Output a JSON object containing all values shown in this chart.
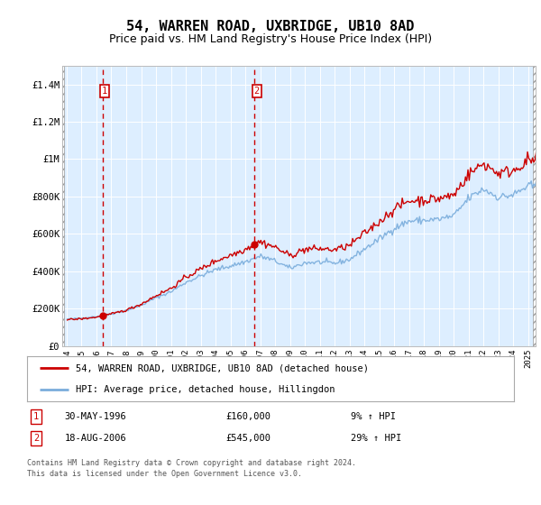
{
  "title": "54, WARREN ROAD, UXBRIDGE, UB10 8AD",
  "subtitle": "Price paid vs. HM Land Registry's House Price Index (HPI)",
  "title_fontsize": 11,
  "subtitle_fontsize": 9,
  "ylim": [
    0,
    1500000
  ],
  "xlim_left": 1993.7,
  "xlim_right": 2025.5,
  "yticks": [
    0,
    200000,
    400000,
    600000,
    800000,
    1000000,
    1200000,
    1400000
  ],
  "ytick_labels": [
    "£0",
    "£200K",
    "£400K",
    "£600K",
    "£800K",
    "£1M",
    "£1.2M",
    "£1.4M"
  ],
  "xtick_years": [
    1994,
    1995,
    1996,
    1997,
    1998,
    1999,
    2000,
    2001,
    2002,
    2003,
    2004,
    2005,
    2006,
    2007,
    2008,
    2009,
    2010,
    2011,
    2012,
    2013,
    2014,
    2015,
    2016,
    2017,
    2018,
    2019,
    2020,
    2021,
    2022,
    2023,
    2024,
    2025
  ],
  "sale1_year": 1996.41,
  "sale1_price": 160000,
  "sale2_year": 2006.63,
  "sale2_price": 545000,
  "red_line_color": "#cc0000",
  "blue_line_color": "#7aaddc",
  "bg_color": "#ddeeff",
  "hatch_end": 1993.85,
  "legend_line1": "54, WARREN ROAD, UXBRIDGE, UB10 8AD (detached house)",
  "legend_line2": "HPI: Average price, detached house, Hillingdon",
  "footnote1": "Contains HM Land Registry data © Crown copyright and database right 2024.",
  "footnote2": "This data is licensed under the Open Government Licence v3.0.",
  "table_row1": [
    "1",
    "30-MAY-1996",
    "£160,000",
    "9% ↑ HPI"
  ],
  "table_row2": [
    "2",
    "18-AUG-2006",
    "£545,000",
    "29% ↑ HPI"
  ]
}
